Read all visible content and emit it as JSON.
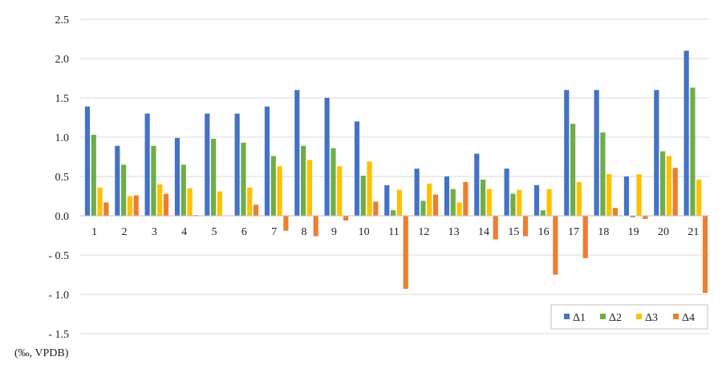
{
  "chart_data": {
    "type": "bar",
    "title": "",
    "xlabel": "",
    "ylabel": "(‰, VPDB)",
    "ylim": [
      -1.5,
      2.5
    ],
    "yticks": [
      {
        "value": 2.5,
        "label": "2.5"
      },
      {
        "value": 2.0,
        "label": "2.0"
      },
      {
        "value": 1.5,
        "label": "1.5"
      },
      {
        "value": 1.0,
        "label": "1.0"
      },
      {
        "value": 0.5,
        "label": "0.5"
      },
      {
        "value": 0.0,
        "label": "0.0"
      },
      {
        "value": -0.5,
        "label": "- 0.5"
      },
      {
        "value": -1.0,
        "label": "- 1.0"
      },
      {
        "value": -1.5,
        "label": "- 1.5"
      }
    ],
    "grid": true,
    "legend_position": "bottom-right",
    "categories": [
      "1",
      "2",
      "3",
      "4",
      "5",
      "6",
      "7",
      "8",
      "9",
      "10",
      "11",
      "12",
      "13",
      "14",
      "15",
      "16",
      "17",
      "18",
      "19",
      "20",
      "21"
    ],
    "series": [
      {
        "name": "Δ1",
        "color": "#4472C4",
        "values": [
          1.39,
          0.89,
          1.3,
          0.99,
          1.3,
          1.3,
          1.39,
          1.6,
          1.5,
          1.2,
          0.39,
          0.6,
          0.5,
          0.79,
          0.6,
          0.39,
          1.6,
          1.6,
          0.5,
          1.6,
          2.1
        ]
      },
      {
        "name": "Δ2",
        "color": "#70AD47",
        "values": [
          1.03,
          0.65,
          0.89,
          0.65,
          0.98,
          0.93,
          0.76,
          0.89,
          0.86,
          0.51,
          0.07,
          0.19,
          0.34,
          0.46,
          0.28,
          0.07,
          1.17,
          1.06,
          -0.02,
          0.82,
          1.63
        ]
      },
      {
        "name": "Δ3",
        "color": "#FFC000",
        "values": [
          0.36,
          0.25,
          0.4,
          0.35,
          0.31,
          0.36,
          0.63,
          0.71,
          0.63,
          0.69,
          0.33,
          0.41,
          0.17,
          0.34,
          0.33,
          0.34,
          0.43,
          0.53,
          0.53,
          0.76,
          0.46
        ]
      },
      {
        "name": "Δ4",
        "color": "#ED7D31",
        "values": [
          0.17,
          0.26,
          0.28,
          0.01,
          0.0,
          0.14,
          -0.19,
          -0.26,
          -0.06,
          0.18,
          -0.93,
          0.27,
          0.43,
          -0.3,
          -0.26,
          -0.75,
          -0.54,
          0.1,
          -0.04,
          0.61,
          -0.98
        ]
      }
    ]
  }
}
